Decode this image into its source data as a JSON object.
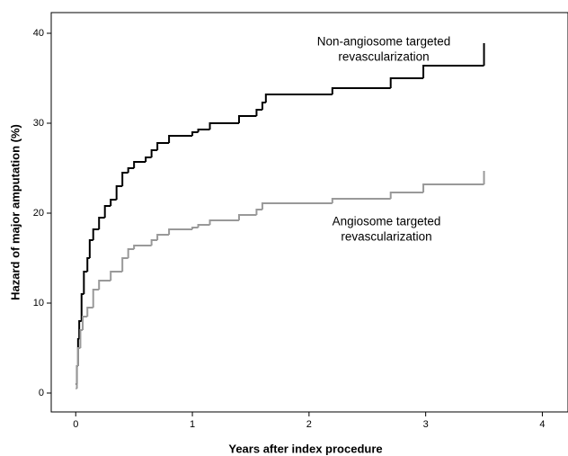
{
  "chart_data": {
    "type": "step",
    "xlabel": "Years after index procedure",
    "ylabel": "Hazard of major amputation (%)",
    "xlim": [
      -0.21,
      4.22
    ],
    "ylim": [
      -2.1,
      42.3
    ],
    "xticks": [
      0,
      1,
      2,
      3,
      4
    ],
    "yticks": [
      0,
      10,
      20,
      30,
      40
    ],
    "series": [
      {
        "label_lines": [
          "Non-angiosome targeted",
          "revascularization"
        ],
        "color": "#000000",
        "x": [
          0,
          0.01,
          0.02,
          0.03,
          0.05,
          0.07,
          0.1,
          0.12,
          0.15,
          0.2,
          0.25,
          0.3,
          0.35,
          0.4,
          0.45,
          0.5,
          0.6,
          0.65,
          0.7,
          0.8,
          1.0,
          1.05,
          1.15,
          1.4,
          1.55,
          1.6,
          1.63,
          2.2,
          2.7,
          2.98,
          3.5
        ],
        "values": [
          1,
          3,
          6,
          8,
          11,
          13.5,
          15,
          17,
          18.2,
          19.5,
          20.8,
          21.5,
          23,
          24.5,
          25,
          25.7,
          26.2,
          27,
          27.8,
          28.6,
          29,
          29.3,
          30,
          30.8,
          31.5,
          32.3,
          33.2,
          33.9,
          35,
          36.4,
          38.9
        ]
      },
      {
        "label_lines": [
          "Angiosome targeted",
          "revascularization"
        ],
        "color": "#999999",
        "x": [
          0,
          0.01,
          0.02,
          0.04,
          0.06,
          0.1,
          0.15,
          0.2,
          0.3,
          0.4,
          0.45,
          0.5,
          0.65,
          0.7,
          0.8,
          1.0,
          1.05,
          1.15,
          1.4,
          1.55,
          1.6,
          2.2,
          2.7,
          2.98,
          3.5
        ],
        "values": [
          0.5,
          3,
          5,
          7,
          8.5,
          9.5,
          11.5,
          12.5,
          13.5,
          15,
          16,
          16.4,
          17,
          17.6,
          18.2,
          18.4,
          18.7,
          19.2,
          19.8,
          20.4,
          21.1,
          21.6,
          22.3,
          23.2,
          24.7
        ]
      }
    ]
  }
}
